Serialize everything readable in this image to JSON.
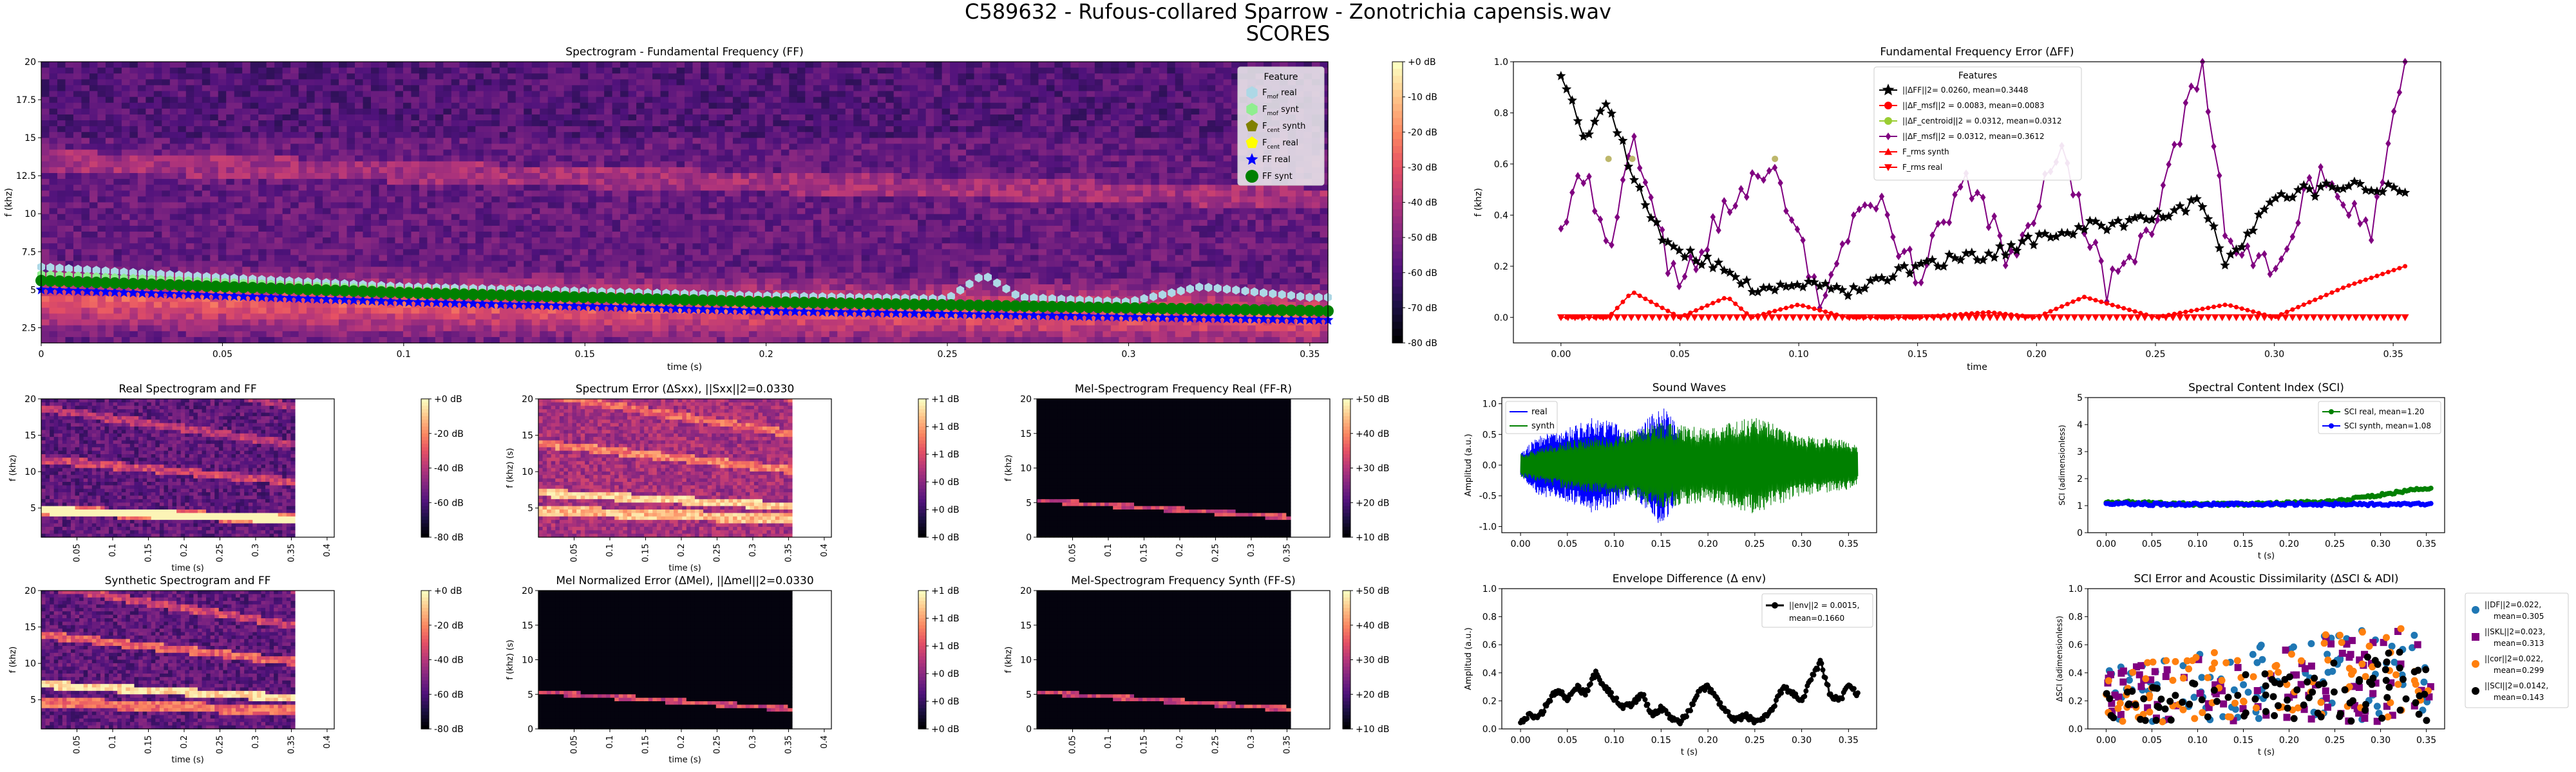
{
  "figure": {
    "suptitle": "C589632 - Rufous-collared Sparrow - Zonotrichia capensis.wav",
    "subtitle": "SCORES"
  },
  "colors": {
    "magma_low": "#000004",
    "magma_mid": "#b73779",
    "magma_high": "#fcfdbf",
    "black": "#000000",
    "red": "#ff0000",
    "purple": "#800080",
    "blue": "#0000ff",
    "green": "#008000",
    "yellowgreen": "#9acd32",
    "olive": "#808000",
    "tab_blue": "#1f77b4",
    "tab_orange": "#ff7f0e"
  },
  "chart_data": [
    {
      "id": "spec_ff",
      "type": "heatmap",
      "title": "Spectrogram - Fundamental Frequency (FF)",
      "xlabel": "time (s)",
      "ylabel": "f (khz)",
      "xlim": [
        0,
        0.355
      ],
      "ylim": [
        1.5,
        20
      ],
      "xticks": [
        "0",
        "0.05",
        "0.1",
        "0.15",
        "0.2",
        "0.25",
        "0.3",
        "0.35"
      ],
      "yticks": [
        "2.5",
        "5",
        "7.5",
        "10",
        "12.5",
        "15",
        "17.5",
        "20"
      ],
      "colorbar": {
        "ticks": [
          "+0 dB",
          "-10 dB",
          "-20 dB",
          "-30 dB",
          "-40 dB",
          "-50 dB",
          "-60 dB",
          "-70 dB",
          "-80 dB"
        ]
      },
      "legend": {
        "title": "Feature",
        "placement": "top-right",
        "entries": [
          {
            "label": "F_mof real",
            "main": "F",
            "sub": "mof",
            "rest": " real",
            "color": "#add8e6",
            "marker": "hexagon"
          },
          {
            "label": "F_mof synt",
            "main": "F",
            "sub": "mof",
            "rest": " synt",
            "color": "#90ee90",
            "marker": "hexagon"
          },
          {
            "label": "F_cent synth",
            "main": "F",
            "sub": "cent",
            "rest": " synth",
            "color": "#808000",
            "marker": "pentagon"
          },
          {
            "label": "F_cent real",
            "main": "F",
            "sub": "cent",
            "rest": " real",
            "color": "#ffff00",
            "marker": "pentagon"
          },
          {
            "label": "FF real",
            "main": "FF real",
            "sub": "",
            "rest": "",
            "color": "#0000ff",
            "marker": "star"
          },
          {
            "label": "FF synt",
            "main": "FF synt",
            "sub": "",
            "rest": "",
            "color": "#008000",
            "marker": "circle"
          }
        ]
      },
      "series": [
        {
          "name": "FF real",
          "x": [
            0,
            0.05,
            0.1,
            0.15,
            0.2,
            0.25,
            0.3,
            0.355
          ],
          "y": [
            5.0,
            4.6,
            4.2,
            3.9,
            3.6,
            3.4,
            3.2,
            3.0
          ]
        },
        {
          "name": "FF synt",
          "x": [
            0,
            0.05,
            0.1,
            0.15,
            0.2,
            0.25,
            0.3,
            0.355
          ],
          "y": [
            5.6,
            5.2,
            4.8,
            4.5,
            4.2,
            4.0,
            3.8,
            3.6
          ]
        },
        {
          "name": "F_mof real",
          "x": [
            0,
            0.02,
            0.05,
            0.1,
            0.15,
            0.2,
            0.25,
            0.26,
            0.27,
            0.3,
            0.32,
            0.35
          ],
          "y": [
            6.5,
            6.2,
            5.8,
            5.2,
            4.9,
            4.6,
            4.4,
            6.0,
            4.5,
            4.2,
            5.2,
            4.5
          ]
        },
        {
          "name": "F_mof synt",
          "x": [
            0,
            0.05,
            0.1,
            0.15,
            0.2,
            0.25,
            0.3,
            0.355
          ],
          "y": [
            6.0,
            5.5,
            5.0,
            4.6,
            4.3,
            4.1,
            3.9,
            3.7
          ]
        }
      ]
    },
    {
      "id": "ff_error",
      "type": "line",
      "title": "Fundamental Frequency Error (ΔFF)",
      "xlabel": "time",
      "ylabel": "f (khz)",
      "xlim": [
        -0.02,
        0.37
      ],
      "ylim": [
        -0.1,
        1.0
      ],
      "xticks": [
        "0.00",
        "0.05",
        "0.10",
        "0.15",
        "0.20",
        "0.25",
        "0.30",
        "0.35"
      ],
      "yticks": [
        "0.0",
        "0.2",
        "0.4",
        "0.6",
        "0.8",
        "1.0"
      ],
      "legend": {
        "title": "Features",
        "placement": "top-center",
        "entries": [
          {
            "label": "||ΔFF||2= 0.0260, mean=0.3448",
            "color": "#000000",
            "marker": "star"
          },
          {
            "label": "||ΔF_msf||2 = 0.0083, mean=0.0083",
            "color": "#ff0000",
            "marker": "circle"
          },
          {
            "label": "||ΔF_centroid||2 = 0.0312, mean=0.0312",
            "color": "#9acd32",
            "marker": "circle"
          },
          {
            "label": "||ΔF_msf||2 = 0.0312, mean=0.3612",
            "color": "#800080",
            "marker": "diamond"
          },
          {
            "label": "F_rms synth",
            "color": "#ff0000",
            "marker": "triangle-up"
          },
          {
            "label": "F_rms real",
            "color": "#ff0000",
            "marker": "triangle-down"
          }
        ]
      },
      "series": [
        {
          "name": "ΔFF",
          "x": [
            0.0,
            0.01,
            0.02,
            0.03,
            0.04,
            0.05,
            0.06,
            0.07,
            0.08,
            0.09,
            0.1,
            0.12,
            0.15,
            0.18,
            0.2,
            0.22,
            0.25,
            0.27,
            0.28,
            0.3,
            0.32,
            0.34,
            0.355
          ],
          "y": [
            0.95,
            0.7,
            0.85,
            0.55,
            0.35,
            0.25,
            0.22,
            0.18,
            0.12,
            0.1,
            0.12,
            0.1,
            0.2,
            0.25,
            0.3,
            0.35,
            0.4,
            0.45,
            0.2,
            0.48,
            0.5,
            0.52,
            0.5
          ]
        },
        {
          "name": "ΔF_msf",
          "x": [
            0.0,
            0.02,
            0.03,
            0.05,
            0.07,
            0.08,
            0.1,
            0.12,
            0.15,
            0.18,
            0.2,
            0.22,
            0.25,
            0.28,
            0.3,
            0.33,
            0.355
          ],
          "y": [
            0.0,
            0.0,
            0.1,
            0.0,
            0.08,
            0.0,
            0.05,
            0.0,
            0.0,
            0.02,
            0.0,
            0.08,
            0.0,
            0.05,
            0.0,
            0.12,
            0.2
          ]
        },
        {
          "name": "ΔF_msf purple",
          "x": [
            0.0,
            0.01,
            0.02,
            0.03,
            0.04,
            0.05,
            0.07,
            0.09,
            0.11,
            0.13,
            0.15,
            0.17,
            0.19,
            0.21,
            0.23,
            0.25,
            0.27,
            0.28,
            0.3,
            0.32,
            0.34,
            0.355
          ],
          "y": [
            0.3,
            0.6,
            0.2,
            0.7,
            0.35,
            0.1,
            0.45,
            0.6,
            0.05,
            0.5,
            0.15,
            0.55,
            0.2,
            0.65,
            0.1,
            0.4,
            1.0,
            0.3,
            0.2,
            0.6,
            0.3,
            1.0
          ]
        },
        {
          "name": "F_rms",
          "x": [
            0.0,
            0.355
          ],
          "y": [
            0.0,
            0.0
          ]
        }
      ]
    },
    {
      "id": "real_spec",
      "type": "heatmap",
      "title": "Real Spectrogram and FF",
      "xlabel": "time (s)",
      "ylabel": "f (khz)",
      "xticks": [
        "0.05",
        "0.1",
        "0.15",
        "0.2",
        "0.25",
        "0.3",
        "0.35",
        "0.4"
      ],
      "yticks": [
        "5",
        "10",
        "15",
        "20"
      ],
      "colorbar": {
        "ticks": [
          "+0 dB",
          "-20 dB",
          "-40 dB",
          "-60 dB",
          "-80 dB"
        ]
      }
    },
    {
      "id": "spectrum_error",
      "type": "heatmap",
      "title": "Spectrum Error (ΔSxx), ||Sxx||2=0.0330",
      "xlabel": "time (s)",
      "ylabel": "f (khz) (s)",
      "xticks": [
        "0.05",
        "0.1",
        "0.15",
        "0.2",
        "0.25",
        "0.3",
        "0.35",
        "0.4"
      ],
      "yticks": [
        "5",
        "10",
        "15",
        "20"
      ],
      "colorbar": {
        "ticks": [
          "+1 dB",
          "+1 dB",
          "+1 dB",
          "+0 dB",
          "+0 dB",
          "+0 dB"
        ]
      }
    },
    {
      "id": "mel_real",
      "type": "heatmap",
      "title": "Mel-Spectrogram Frequency Real (FF-R)",
      "xlabel": "",
      "ylabel": "f (khz)",
      "xticks": [
        "0.05",
        "0.1",
        "0.15",
        "0.2",
        "0.25",
        "0.3",
        "0.35"
      ],
      "yticks": [
        "0",
        "5",
        "10",
        "15",
        "20"
      ],
      "colorbar": {
        "ticks": [
          "+50 dB",
          "+40 dB",
          "+30 dB",
          "+20 dB",
          "+10 dB"
        ]
      }
    },
    {
      "id": "synth_spec",
      "type": "heatmap",
      "title": "Synthetic Spectrogram and FF",
      "xlabel": "time (s)",
      "ylabel": "f (khz)",
      "xticks": [
        "0.05",
        "0.1",
        "0.15",
        "0.2",
        "0.25",
        "0.3",
        "0.35",
        "0.4"
      ],
      "yticks": [
        "5",
        "10",
        "15",
        "20"
      ],
      "colorbar": {
        "ticks": [
          "+0 dB",
          "-20 dB",
          "-40 dB",
          "-60 dB",
          "-80 dB"
        ]
      }
    },
    {
      "id": "mel_norm_error",
      "type": "heatmap",
      "title": "Mel Normalized Error (ΔMel), ||Δmel||2=0.0330",
      "xlabel": "time (s)",
      "ylabel": "f (khz) (s)",
      "xticks": [
        "0.05",
        "0.1",
        "0.15",
        "0.2",
        "0.25",
        "0.3",
        "0.35",
        "0.4"
      ],
      "yticks": [
        "0",
        "5",
        "10",
        "15",
        "20"
      ],
      "colorbar": {
        "ticks": [
          "+1 dB",
          "+1 dB",
          "+1 dB",
          "+0 dB",
          "+0 dB",
          "+0 dB"
        ]
      }
    },
    {
      "id": "mel_synth",
      "type": "heatmap",
      "title": "Mel-Spectrogram Frequency Synth (FF-S)",
      "xlabel": "",
      "ylabel": "f (khz)",
      "xticks": [
        "0.05",
        "0.1",
        "0.15",
        "0.2",
        "0.25",
        "0.3",
        "0.35"
      ],
      "yticks": [
        "0",
        "5",
        "10",
        "15",
        "20"
      ],
      "colorbar": {
        "ticks": [
          "+50 dB",
          "+40 dB",
          "+30 dB",
          "+20 dB",
          "+10 dB"
        ]
      }
    },
    {
      "id": "sound_waves",
      "type": "area",
      "title": "Sound Waves",
      "xlabel": "",
      "ylabel": "Amplitud (a.u.)",
      "xlim": [
        -0.02,
        0.38
      ],
      "ylim": [
        -1.1,
        1.1
      ],
      "xticks": [
        "0.00",
        "0.05",
        "0.10",
        "0.15",
        "0.20",
        "0.25",
        "0.30",
        "0.35"
      ],
      "yticks": [
        "-1.0",
        "-0.5",
        "0.0",
        "0.5",
        "1.0"
      ],
      "legend": {
        "placement": "top-left",
        "entries": [
          {
            "label": "real",
            "color": "#0000ff"
          },
          {
            "label": "synth",
            "color": "#008000"
          }
        ]
      },
      "series": [
        {
          "name": "real",
          "x": [
            0,
            0.02,
            0.05,
            0.08,
            0.1,
            0.12,
            0.15,
            0.17,
            0.18
          ],
          "y": [
            0.2,
            0.5,
            0.6,
            0.8,
            0.7,
            0.5,
            1.0,
            0.6,
            0.1
          ]
        },
        {
          "name": "synth",
          "x": [
            0,
            0.05,
            0.1,
            0.15,
            0.2,
            0.25,
            0.3,
            0.35,
            0.36
          ],
          "y": [
            0.2,
            0.4,
            0.5,
            0.7,
            0.6,
            0.8,
            0.5,
            0.4,
            0.3
          ]
        }
      ]
    },
    {
      "id": "sci",
      "type": "scatter",
      "title": "Spectral Content Index (SCI)",
      "xlabel": "t (s)",
      "ylabel": "SCI (adimensionless)",
      "xlim": [
        -0.02,
        0.37
      ],
      "ylim": [
        0,
        5
      ],
      "xticks": [
        "0.00",
        "0.05",
        "0.10",
        "0.15",
        "0.20",
        "0.25",
        "0.30",
        "0.35"
      ],
      "yticks": [
        "0",
        "1",
        "2",
        "3",
        "4",
        "5"
      ],
      "legend": {
        "placement": "top-right",
        "entries": [
          {
            "label": "SCI real,   mean=1.20",
            "color": "#008000"
          },
          {
            "label": "SCI synth, mean=1.08",
            "color": "#0000ff"
          }
        ]
      },
      "series": [
        {
          "name": "SCI real",
          "x": [
            0,
            0.05,
            0.1,
            0.15,
            0.2,
            0.25,
            0.28,
            0.3,
            0.32,
            0.35
          ],
          "y": [
            1.15,
            1.1,
            1.05,
            1.05,
            1.1,
            1.15,
            1.3,
            1.4,
            1.5,
            1.65
          ]
        },
        {
          "name": "SCI synth",
          "x": [
            0,
            0.05,
            0.1,
            0.15,
            0.2,
            0.25,
            0.3,
            0.35
          ],
          "y": [
            1.1,
            1.05,
            1.05,
            1.05,
            1.05,
            1.05,
            1.05,
            1.05
          ]
        }
      ]
    },
    {
      "id": "envelope",
      "type": "line",
      "title": "Envelope Difference (Δ env)",
      "xlabel": "t (s)",
      "ylabel": "Amplitud (a.u.)",
      "xlim": [
        -0.02,
        0.38
      ],
      "ylim": [
        0,
        1.0
      ],
      "xticks": [
        "0.00",
        "0.05",
        "0.10",
        "0.15",
        "0.20",
        "0.25",
        "0.30",
        "0.35"
      ],
      "yticks": [
        "0.0",
        "0.2",
        "0.4",
        "0.6",
        "0.8",
        "1.0"
      ],
      "legend": {
        "placement": "top-right",
        "entries": [
          {
            "label": "||env||2 = 0.0015,",
            "label2": "mean=0.1660",
            "color": "#000000"
          }
        ]
      },
      "series": [
        {
          "name": "Δ env",
          "x": [
            0.0,
            0.01,
            0.02,
            0.03,
            0.04,
            0.05,
            0.06,
            0.07,
            0.08,
            0.09,
            0.1,
            0.11,
            0.12,
            0.13,
            0.14,
            0.15,
            0.16,
            0.17,
            0.18,
            0.19,
            0.2,
            0.21,
            0.22,
            0.23,
            0.24,
            0.25,
            0.26,
            0.27,
            0.28,
            0.29,
            0.3,
            0.31,
            0.32,
            0.33,
            0.34,
            0.35,
            0.36
          ],
          "y": [
            0.05,
            0.1,
            0.08,
            0.2,
            0.28,
            0.2,
            0.3,
            0.25,
            0.4,
            0.3,
            0.22,
            0.15,
            0.18,
            0.25,
            0.1,
            0.15,
            0.08,
            0.05,
            0.12,
            0.28,
            0.3,
            0.2,
            0.12,
            0.06,
            0.1,
            0.05,
            0.08,
            0.15,
            0.3,
            0.25,
            0.2,
            0.35,
            0.48,
            0.25,
            0.2,
            0.3,
            0.25
          ]
        }
      ]
    },
    {
      "id": "sci_error",
      "type": "scatter",
      "title": "SCI Error and Acoustic Dissimilarity (ΔSCI & ADI)",
      "xlabel": "t (s)",
      "ylabel": "ΔSCI (adimensionless)",
      "xlim": [
        -0.02,
        0.37
      ],
      "ylim": [
        0,
        1.0
      ],
      "xticks": [
        "0.00",
        "0.05",
        "0.10",
        "0.15",
        "0.20",
        "0.25",
        "0.30",
        "0.35"
      ],
      "yticks": [
        "0.0",
        "0.2",
        "0.4",
        "0.6",
        "0.8",
        "1.0"
      ],
      "legend": {
        "placement": "outside-right",
        "entries": [
          {
            "label": "||DF||2=0.022,",
            "label2": "mean=0.305",
            "color": "#1f77b4",
            "marker": "circle"
          },
          {
            "label": "||SKL||2=0.023,",
            "label2": "mean=0.313",
            "color": "#800080",
            "marker": "square"
          },
          {
            "label": "||cor||2=0.022,",
            "label2": "mean=0.299",
            "color": "#ff7f0e",
            "marker": "circle"
          },
          {
            "label": "||SCI||2=0.0142,",
            "label2": "mean=0.143",
            "color": "#000000",
            "marker": "circle"
          }
        ]
      }
    }
  ]
}
